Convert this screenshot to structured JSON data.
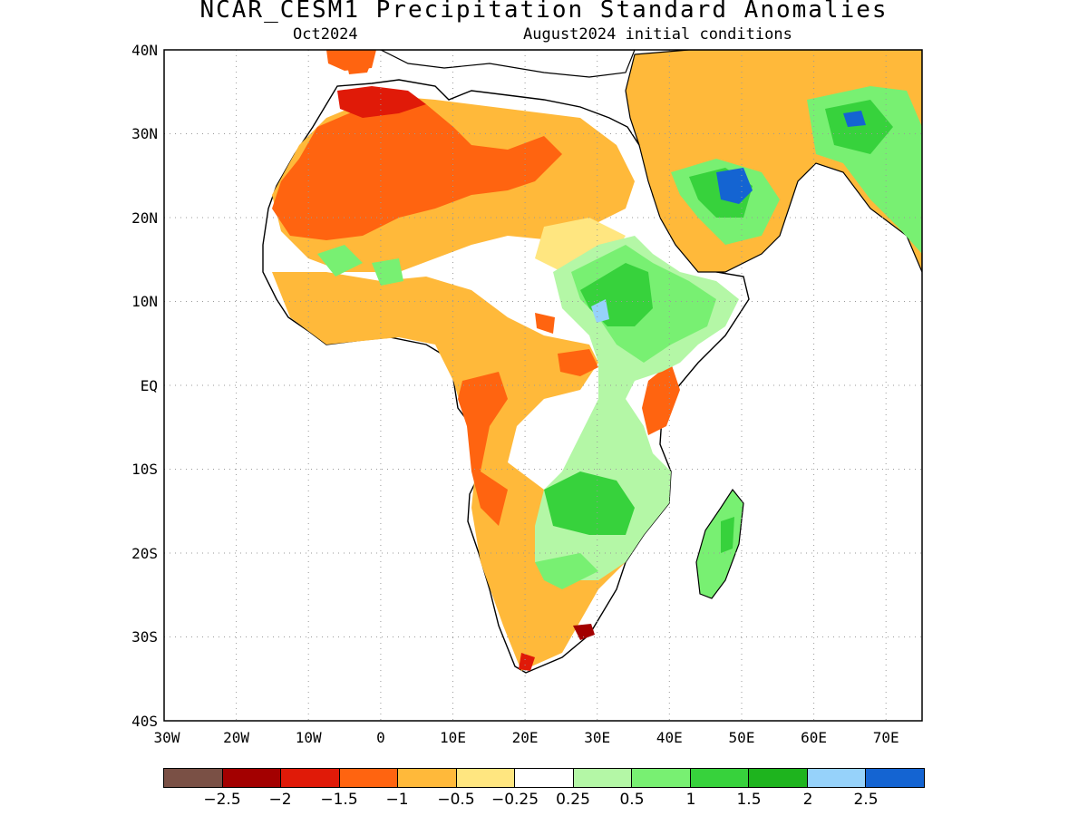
{
  "title": "NCAR_CESM1 Precipitation Standard Anomalies",
  "subtitle_left": "Oct2024",
  "subtitle_right": "August2024 initial conditions",
  "axes": {
    "lat_labels": [
      "40N",
      "30N",
      "20N",
      "10N",
      "EQ",
      "10S",
      "20S",
      "30S",
      "40S"
    ],
    "lon_labels": [
      "30W",
      "20W",
      "10W",
      "0",
      "10E",
      "20E",
      "30E",
      "40E",
      "50E",
      "60E",
      "70E"
    ],
    "lat_range": [
      -40,
      40
    ],
    "lon_range": [
      -30,
      75
    ],
    "grid": "dotted"
  },
  "colorbar": {
    "colors": [
      "#7a5045",
      "#a30000",
      "#e01a08",
      "#ff6410",
      "#ffb93a",
      "#ffe680",
      "#ffffff",
      "#b4f7a6",
      "#78f072",
      "#37d23c",
      "#1eb41e",
      "#96d2fa",
      "#1464d2"
    ],
    "labels": [
      "−2.5",
      "−2",
      "−1.5",
      "−1",
      "−0.5",
      "−0.25",
      "0.25",
      "0.5",
      "1",
      "1.5",
      "2",
      "2.5"
    ]
  }
}
